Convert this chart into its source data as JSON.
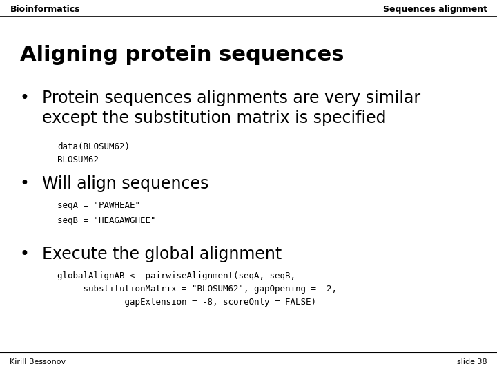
{
  "bg_color": "#ffffff",
  "header_left": "Bioinformatics",
  "header_right": "Sequences alignment",
  "title": "Aligning protein sequences",
  "bullet1_main": "Protein sequences alignments are very similar\nexcept the substitution matrix is specified",
  "bullet1_code": "data(BLOSUM62)\nBLOSUM62",
  "bullet2_main": "Will align sequences",
  "bullet2_code": "seqA = \"PAWHEAE\"\nseqB = \"HEAGAWGHEE\"",
  "bullet3_main": "Execute the global alignment",
  "bullet3_code": "globalAlignAB <- pairwiseAlignment(seqA, seqB,\n     substitutionMatrix = \"BLOSUM62\", gapOpening = -2,\n             gapExtension = -8, scoreOnly = FALSE)",
  "footer_left": "Kirill Bessonov",
  "footer_right": "slide 38",
  "text_color": "#000000",
  "header_fontsize": 9,
  "title_fontsize": 22,
  "bullet_main_fontsize": 17,
  "bullet_code_fontsize": 9,
  "footer_fontsize": 8
}
